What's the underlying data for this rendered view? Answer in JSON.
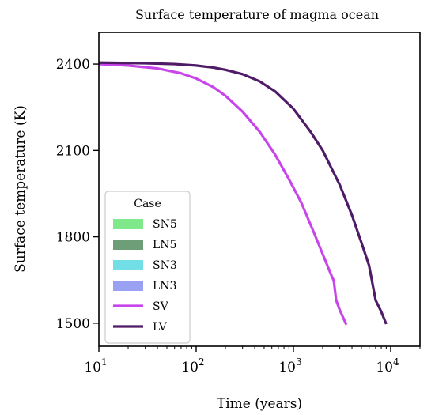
{
  "chart_data": {
    "type": "line",
    "title": "Surface temperature of magma ocean",
    "xlabel": "Time (years)",
    "ylabel": "Surface temperature (K)",
    "xscale": "log",
    "xlim": [
      10,
      20000
    ],
    "ylim": [
      1420,
      2510
    ],
    "x_ticks": [
      {
        "value": 10,
        "base": "10",
        "exp": "1"
      },
      {
        "value": 100,
        "base": "10",
        "exp": "2"
      },
      {
        "value": 1000,
        "base": "10",
        "exp": "3"
      },
      {
        "value": 10000,
        "base": "10",
        "exp": "4"
      }
    ],
    "y_ticks": [
      {
        "value": 1500,
        "label": "1500"
      },
      {
        "value": 1800,
        "label": "1800"
      },
      {
        "value": 2100,
        "label": "2100"
      },
      {
        "value": 2400,
        "label": "2400"
      }
    ],
    "grid": false,
    "legend": {
      "title": "Case",
      "placement": "lower-left",
      "entries": [
        {
          "name": "SN5",
          "kind": "patch",
          "color": "#7ee88a"
        },
        {
          "name": "LN5",
          "kind": "patch",
          "color": "#6d9e77"
        },
        {
          "name": "SN3",
          "kind": "patch",
          "color": "#72dfe6"
        },
        {
          "name": "LN3",
          "kind": "patch",
          "color": "#9aa0f2"
        },
        {
          "name": "SV",
          "kind": "line",
          "color": "#c845eb"
        },
        {
          "name": "LV",
          "kind": "line",
          "color": "#4f1a66"
        }
      ]
    },
    "series": [
      {
        "name": "SV",
        "color": "#c845eb",
        "x": [
          10,
          20,
          40,
          70,
          100,
          150,
          200,
          300,
          450,
          650,
          900,
          1200,
          1600,
          2000,
          2500,
          2600,
          2750,
          3000,
          3500
        ],
        "y": [
          2400,
          2395,
          2385,
          2368,
          2350,
          2320,
          2290,
          2235,
          2165,
          2085,
          2000,
          1920,
          1820,
          1740,
          1660,
          1648,
          1580,
          1545,
          1495
        ]
      },
      {
        "name": "LV",
        "color": "#4f1a66",
        "x": [
          10,
          30,
          60,
          100,
          150,
          200,
          300,
          450,
          650,
          1000,
          1500,
          2000,
          3000,
          4000,
          5000,
          6000,
          7000,
          8000,
          9000
        ],
        "y": [
          2405,
          2403,
          2400,
          2395,
          2388,
          2380,
          2365,
          2340,
          2305,
          2245,
          2165,
          2100,
          1980,
          1875,
          1780,
          1700,
          1580,
          1540,
          1497
        ]
      }
    ]
  }
}
